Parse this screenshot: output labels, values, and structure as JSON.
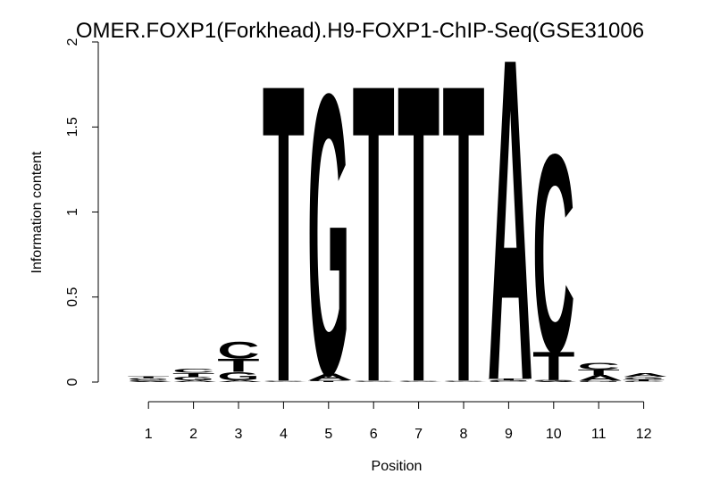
{
  "chart_data": {
    "type": "sequence-logo",
    "title": "OMER.FOXP1(Forkhead).H9-FOXP1-ChIP-Seq(GSE31006",
    "xlabel": "Position",
    "ylabel": "Information content",
    "ylim": [
      0,
      2
    ],
    "yticks": [
      0,
      0.5,
      1,
      1.5,
      2
    ],
    "ytick_labels": [
      "0",
      "0.5",
      "1",
      "1.5",
      "2"
    ],
    "positions": [
      "1",
      "2",
      "3",
      "4",
      "5",
      "6",
      "7",
      "8",
      "9",
      "10",
      "11",
      "12"
    ],
    "colors": {
      "A": "#00E000",
      "C": "#0000FF",
      "G": "#FFA500",
      "T": "#FF0000"
    },
    "columns": [
      [
        {
          "letter": "A",
          "value": 0.006
        },
        {
          "letter": "C",
          "value": 0.008
        },
        {
          "letter": "G",
          "value": 0.01
        },
        {
          "letter": "T",
          "value": 0.01
        }
      ],
      [
        {
          "letter": "A",
          "value": 0.01
        },
        {
          "letter": "G",
          "value": 0.02
        },
        {
          "letter": "T",
          "value": 0.025
        },
        {
          "letter": "C",
          "value": 0.025
        }
      ],
      [
        {
          "letter": "A",
          "value": 0.01
        },
        {
          "letter": "G",
          "value": 0.05
        },
        {
          "letter": "T",
          "value": 0.08
        },
        {
          "letter": "C",
          "value": 0.1
        }
      ],
      [
        {
          "letter": "A",
          "value": 0.003
        },
        {
          "letter": "C",
          "value": 0.003
        },
        {
          "letter": "G",
          "value": 0.003
        },
        {
          "letter": "T",
          "value": 1.8
        }
      ],
      [
        {
          "letter": "T",
          "value": 0.005
        },
        {
          "letter": "C",
          "value": 0.006
        },
        {
          "letter": "A",
          "value": 0.04
        },
        {
          "letter": "G",
          "value": 1.7
        }
      ],
      [
        {
          "letter": "A",
          "value": 0.003
        },
        {
          "letter": "C",
          "value": 0.003
        },
        {
          "letter": "G",
          "value": 0.003
        },
        {
          "letter": "T",
          "value": 1.8
        }
      ],
      [
        {
          "letter": "A",
          "value": 0.003
        },
        {
          "letter": "C",
          "value": 0.003
        },
        {
          "letter": "G",
          "value": 0.003
        },
        {
          "letter": "T",
          "value": 1.8
        }
      ],
      [
        {
          "letter": "A",
          "value": 0.003
        },
        {
          "letter": "C",
          "value": 0.003
        },
        {
          "letter": "G",
          "value": 0.003
        },
        {
          "letter": "T",
          "value": 1.8
        }
      ],
      [
        {
          "letter": "C",
          "value": 0.005
        },
        {
          "letter": "G",
          "value": 0.005
        },
        {
          "letter": "T",
          "value": 0.01
        },
        {
          "letter": "A",
          "value": 1.95
        }
      ],
      [
        {
          "letter": "A",
          "value": 0.005
        },
        {
          "letter": "G",
          "value": 0.005
        },
        {
          "letter": "T",
          "value": 0.17
        },
        {
          "letter": "C",
          "value": 1.2
        }
      ],
      [
        {
          "letter": "G",
          "value": 0.008
        },
        {
          "letter": "A",
          "value": 0.035
        },
        {
          "letter": "T",
          "value": 0.03
        },
        {
          "letter": "C",
          "value": 0.04
        }
      ],
      [
        {
          "letter": "C",
          "value": 0.006
        },
        {
          "letter": "T",
          "value": 0.01
        },
        {
          "letter": "G",
          "value": 0.015
        },
        {
          "letter": "A",
          "value": 0.02
        }
      ]
    ]
  }
}
